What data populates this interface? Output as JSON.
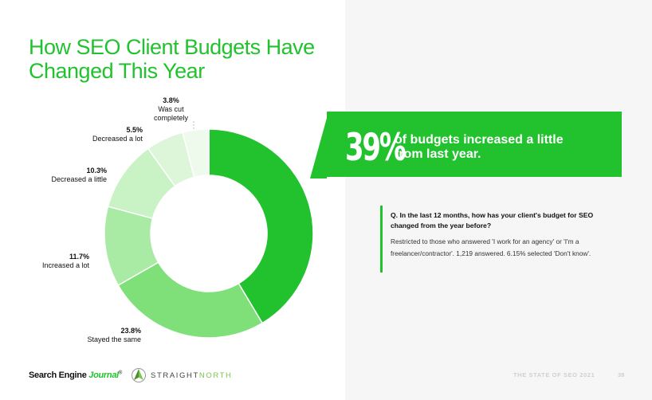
{
  "title": "How SEO Client Budgets Have Changed This Year",
  "callout": {
    "big_value": "39%",
    "text": "of budgets increased a little from last year."
  },
  "question": {
    "title": "Q. In the last 12 months, how has your client's budget for SEO changed from the year before?",
    "note": "Restricted to those who answered 'I work for an agency' or 'I'm a freelancer/contractor'. 1,219 answered. 6.15% selected 'Don't know'."
  },
  "footer": {
    "sej_brand": "Search Engine",
    "sej_journal": "Journal",
    "sej_tm": "®",
    "straight": "STRAIGHT",
    "north": "NORTH",
    "report_title": "THE STATE OF SEO 2021",
    "page_number": "39"
  },
  "colors": {
    "accent": "#22c22f",
    "panel_bg": "#f6f6f6"
  },
  "chart_data": {
    "type": "pie",
    "title": "How SEO Client Budgets Have Changed This Year",
    "categories": [
      "Increased a little",
      "Stayed the same",
      "Increased a lot",
      "Decreased a little",
      "Decreased a lot",
      "Was cut completely"
    ],
    "values": [
      39,
      23.8,
      11.7,
      10.3,
      5.5,
      3.8
    ],
    "labels": [
      "",
      "23.8%",
      "11.7%",
      "10.3%",
      "5.5%",
      "3.8%"
    ],
    "colors": [
      "#22c22f",
      "#7fe07a",
      "#a9eba5",
      "#c9f2c5",
      "#ddf6da",
      "#eefaec"
    ],
    "donut": true
  }
}
